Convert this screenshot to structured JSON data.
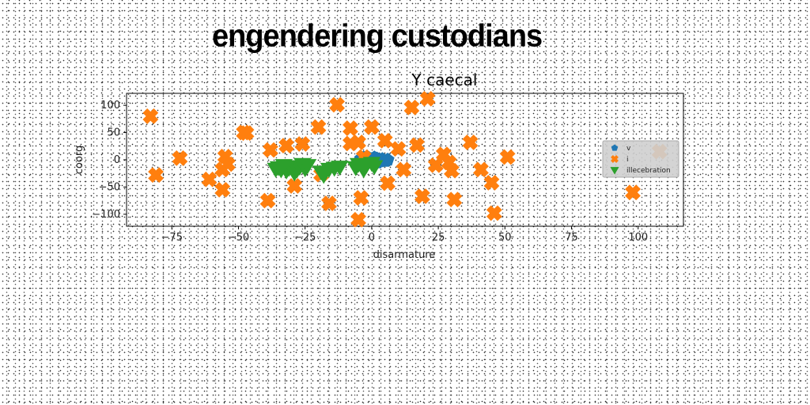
{
  "page": {
    "heading": "engendering custodians"
  },
  "chart_data": {
    "type": "scatter",
    "title": "Y caecal",
    "xlabel": "disarmature",
    "ylabel": "coorg",
    "xlim": [
      -92,
      117
    ],
    "ylim": [
      -122,
      122
    ],
    "x_ticks": [
      -75,
      -50,
      -25,
      0,
      25,
      50,
      75,
      100
    ],
    "y_ticks": [
      100,
      50,
      0,
      -50,
      -100
    ],
    "legend_position": "right",
    "series": [
      {
        "name": "v",
        "marker": "pentagon",
        "color": "#1f77b4",
        "points": [
          [
            -4,
            2
          ],
          [
            -3,
            4
          ],
          [
            -2,
            0
          ],
          [
            -1,
            3
          ],
          [
            0,
            1
          ],
          [
            1,
            -1
          ],
          [
            2,
            2
          ],
          [
            3,
            0
          ],
          [
            3,
            -3
          ],
          [
            4,
            1
          ],
          [
            5,
            -2
          ],
          [
            6,
            0
          ],
          [
            -2,
            -3
          ],
          [
            0,
            -4
          ],
          [
            1,
            4
          ],
          [
            2,
            -5
          ]
        ]
      },
      {
        "name": "i",
        "marker": "x",
        "color": "#ff7f0e",
        "points": [
          [
            -83,
            80
          ],
          [
            -81,
            -28
          ],
          [
            -72,
            3
          ],
          [
            -61,
            -36
          ],
          [
            -56,
            -18
          ],
          [
            -56,
            -55
          ],
          [
            -55,
            6
          ],
          [
            -54,
            -8
          ],
          [
            -48,
            50
          ],
          [
            -47,
            49
          ],
          [
            -38,
            18
          ],
          [
            -39,
            -75
          ],
          [
            -32,
            26
          ],
          [
            -29,
            -48
          ],
          [
            -26,
            29
          ],
          [
            -20,
            60
          ],
          [
            -19,
            -27
          ],
          [
            -16,
            -80
          ],
          [
            -13,
            101
          ],
          [
            -8,
            58
          ],
          [
            -8,
            30
          ],
          [
            -5,
            32
          ],
          [
            -5,
            -110
          ],
          [
            -4,
            -70
          ],
          [
            -3,
            5
          ],
          [
            0,
            60
          ],
          [
            5,
            35
          ],
          [
            6,
            -43
          ],
          [
            10,
            20
          ],
          [
            12,
            -18
          ],
          [
            15,
            96
          ],
          [
            17,
            27
          ],
          [
            19,
            -67
          ],
          [
            21,
            112
          ],
          [
            24,
            -10
          ],
          [
            27,
            10
          ],
          [
            29,
            -5
          ],
          [
            30,
            -20
          ],
          [
            31,
            -73
          ],
          [
            37,
            32
          ],
          [
            41,
            -18
          ],
          [
            45,
            -42
          ],
          [
            46,
            -98
          ],
          [
            51,
            5
          ],
          [
            98,
            -60
          ],
          [
            108,
            15
          ]
        ]
      },
      {
        "name": "illecebration",
        "marker": "triangle-down",
        "color": "#2ca02c",
        "points": [
          [
            -36,
            -17
          ],
          [
            -35,
            -14
          ],
          [
            -34,
            -18
          ],
          [
            -33,
            -10
          ],
          [
            -32,
            -20
          ],
          [
            -31,
            -15
          ],
          [
            -30,
            -12
          ],
          [
            -29,
            -24
          ],
          [
            -28,
            -18
          ],
          [
            -27,
            -13
          ],
          [
            -26,
            -8
          ],
          [
            -25,
            -16
          ],
          [
            -24,
            -10
          ],
          [
            -19,
            -22
          ],
          [
            -18,
            -28
          ],
          [
            -16,
            -17
          ],
          [
            -14,
            -15
          ],
          [
            -12,
            -13
          ],
          [
            -6,
            -14
          ],
          [
            -5,
            -8
          ],
          [
            -3,
            -18
          ],
          [
            -2,
            -10
          ],
          [
            0,
            -6
          ],
          [
            1,
            -12
          ]
        ]
      }
    ]
  }
}
